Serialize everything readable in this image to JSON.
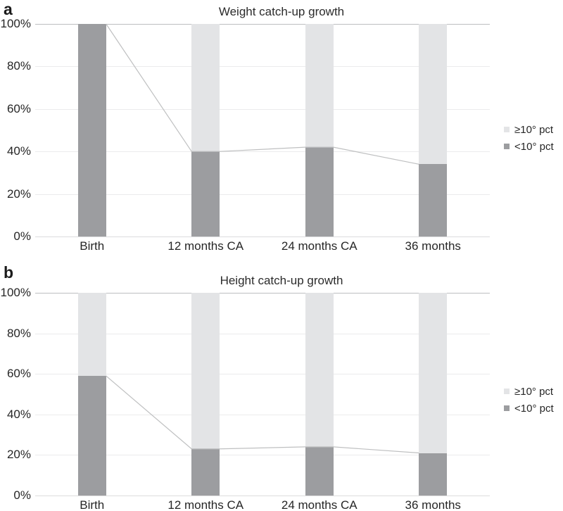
{
  "colors": {
    "background": "#ffffff",
    "dark_segment": "#9c9da0",
    "light_segment": "#e3e4e6",
    "connector_line": "#bfc0c1",
    "gridline": "#ebebec",
    "top_gridline": "#bdbec0",
    "baseline": "#dcdcdd",
    "text": "#262626"
  },
  "chart_data": [
    {
      "type": "bar",
      "stacked": true,
      "panel_label": "a",
      "title": "Weight catch-up growth",
      "categories": [
        "Birth",
        "12 months CA",
        "24 months CA",
        "36 months"
      ],
      "series": [
        {
          "name": "<10° pct",
          "key": "lt-10-pct",
          "color": "dark_segment",
          "values": [
            100,
            40,
            42,
            34
          ]
        },
        {
          "name": "≥10° pct",
          "key": "ge-10-pct",
          "color": "light_segment",
          "values": [
            0,
            60,
            58,
            66
          ]
        }
      ],
      "connector": {
        "follows_series": "<10° pct",
        "values": [
          100,
          40,
          42,
          34
        ]
      },
      "ylim": [
        0,
        100
      ],
      "ytick_labels": [
        "0%",
        "20%",
        "40%",
        "60%",
        "80%",
        "100%"
      ],
      "grid": true,
      "legend_position": "right",
      "legend_items": [
        {
          "label": "≥10° pct",
          "key": "ge-10-pct",
          "color": "light_segment"
        },
        {
          "label": "<10° pct",
          "key": "lt-10-pct",
          "color": "dark_segment"
        }
      ]
    },
    {
      "type": "bar",
      "stacked": true,
      "panel_label": "b",
      "title": "Height catch-up growth",
      "categories": [
        "Birth",
        "12 months CA",
        "24 months CA",
        "36 months"
      ],
      "series": [
        {
          "name": "<10° pct",
          "key": "lt-10-pct",
          "color": "dark_segment",
          "values": [
            59,
            23,
            24,
            21
          ]
        },
        {
          "name": "≥10° pct",
          "key": "ge-10-pct",
          "color": "light_segment",
          "values": [
            41,
            77,
            76,
            79
          ]
        }
      ],
      "connector": {
        "follows_series": "<10° pct",
        "values": [
          59,
          23,
          24,
          21
        ]
      },
      "ylim": [
        0,
        100
      ],
      "ytick_labels": [
        "0%",
        "20%",
        "40%",
        "60%",
        "80%",
        "100%"
      ],
      "grid": true,
      "legend_position": "right",
      "legend_items": [
        {
          "label": "≥10° pct",
          "key": "ge-10-pct",
          "color": "light_segment"
        },
        {
          "label": "<10° pct",
          "key": "lt-10-pct",
          "color": "dark_segment"
        }
      ]
    }
  ]
}
